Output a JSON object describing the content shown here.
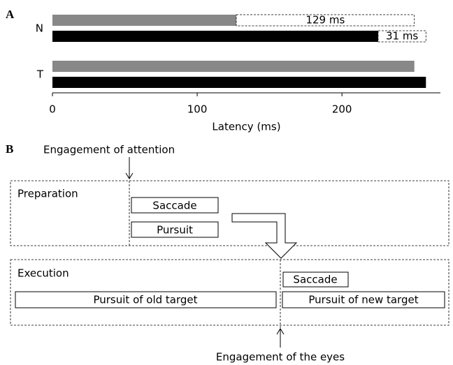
{
  "panel_labels": [
    "A",
    "B"
  ],
  "chart_data": {
    "type": "hbar",
    "categories": [
      "N",
      "T"
    ],
    "series": [
      {
        "color": "#888888",
        "values": [
          127,
          250
        ]
      },
      {
        "color": "#000000",
        "values": [
          225,
          258
        ]
      }
    ],
    "xlim": [
      0,
      268
    ],
    "xticks": [
      0,
      100,
      200
    ],
    "xlabel": "Latency (ms)",
    "annotations": [
      "129 ms",
      "31 ms"
    ]
  },
  "diagram": {
    "top_label": "Engagement of attention",
    "preparation": {
      "label": "Preparation",
      "boxes": [
        "Saccade",
        "Pursuit"
      ]
    },
    "execution": {
      "label": "Execution",
      "boxes": [
        "Saccade",
        "Pursuit of old target",
        "Pursuit of new target"
      ]
    },
    "bottom_label": "Engagement of the eyes"
  }
}
